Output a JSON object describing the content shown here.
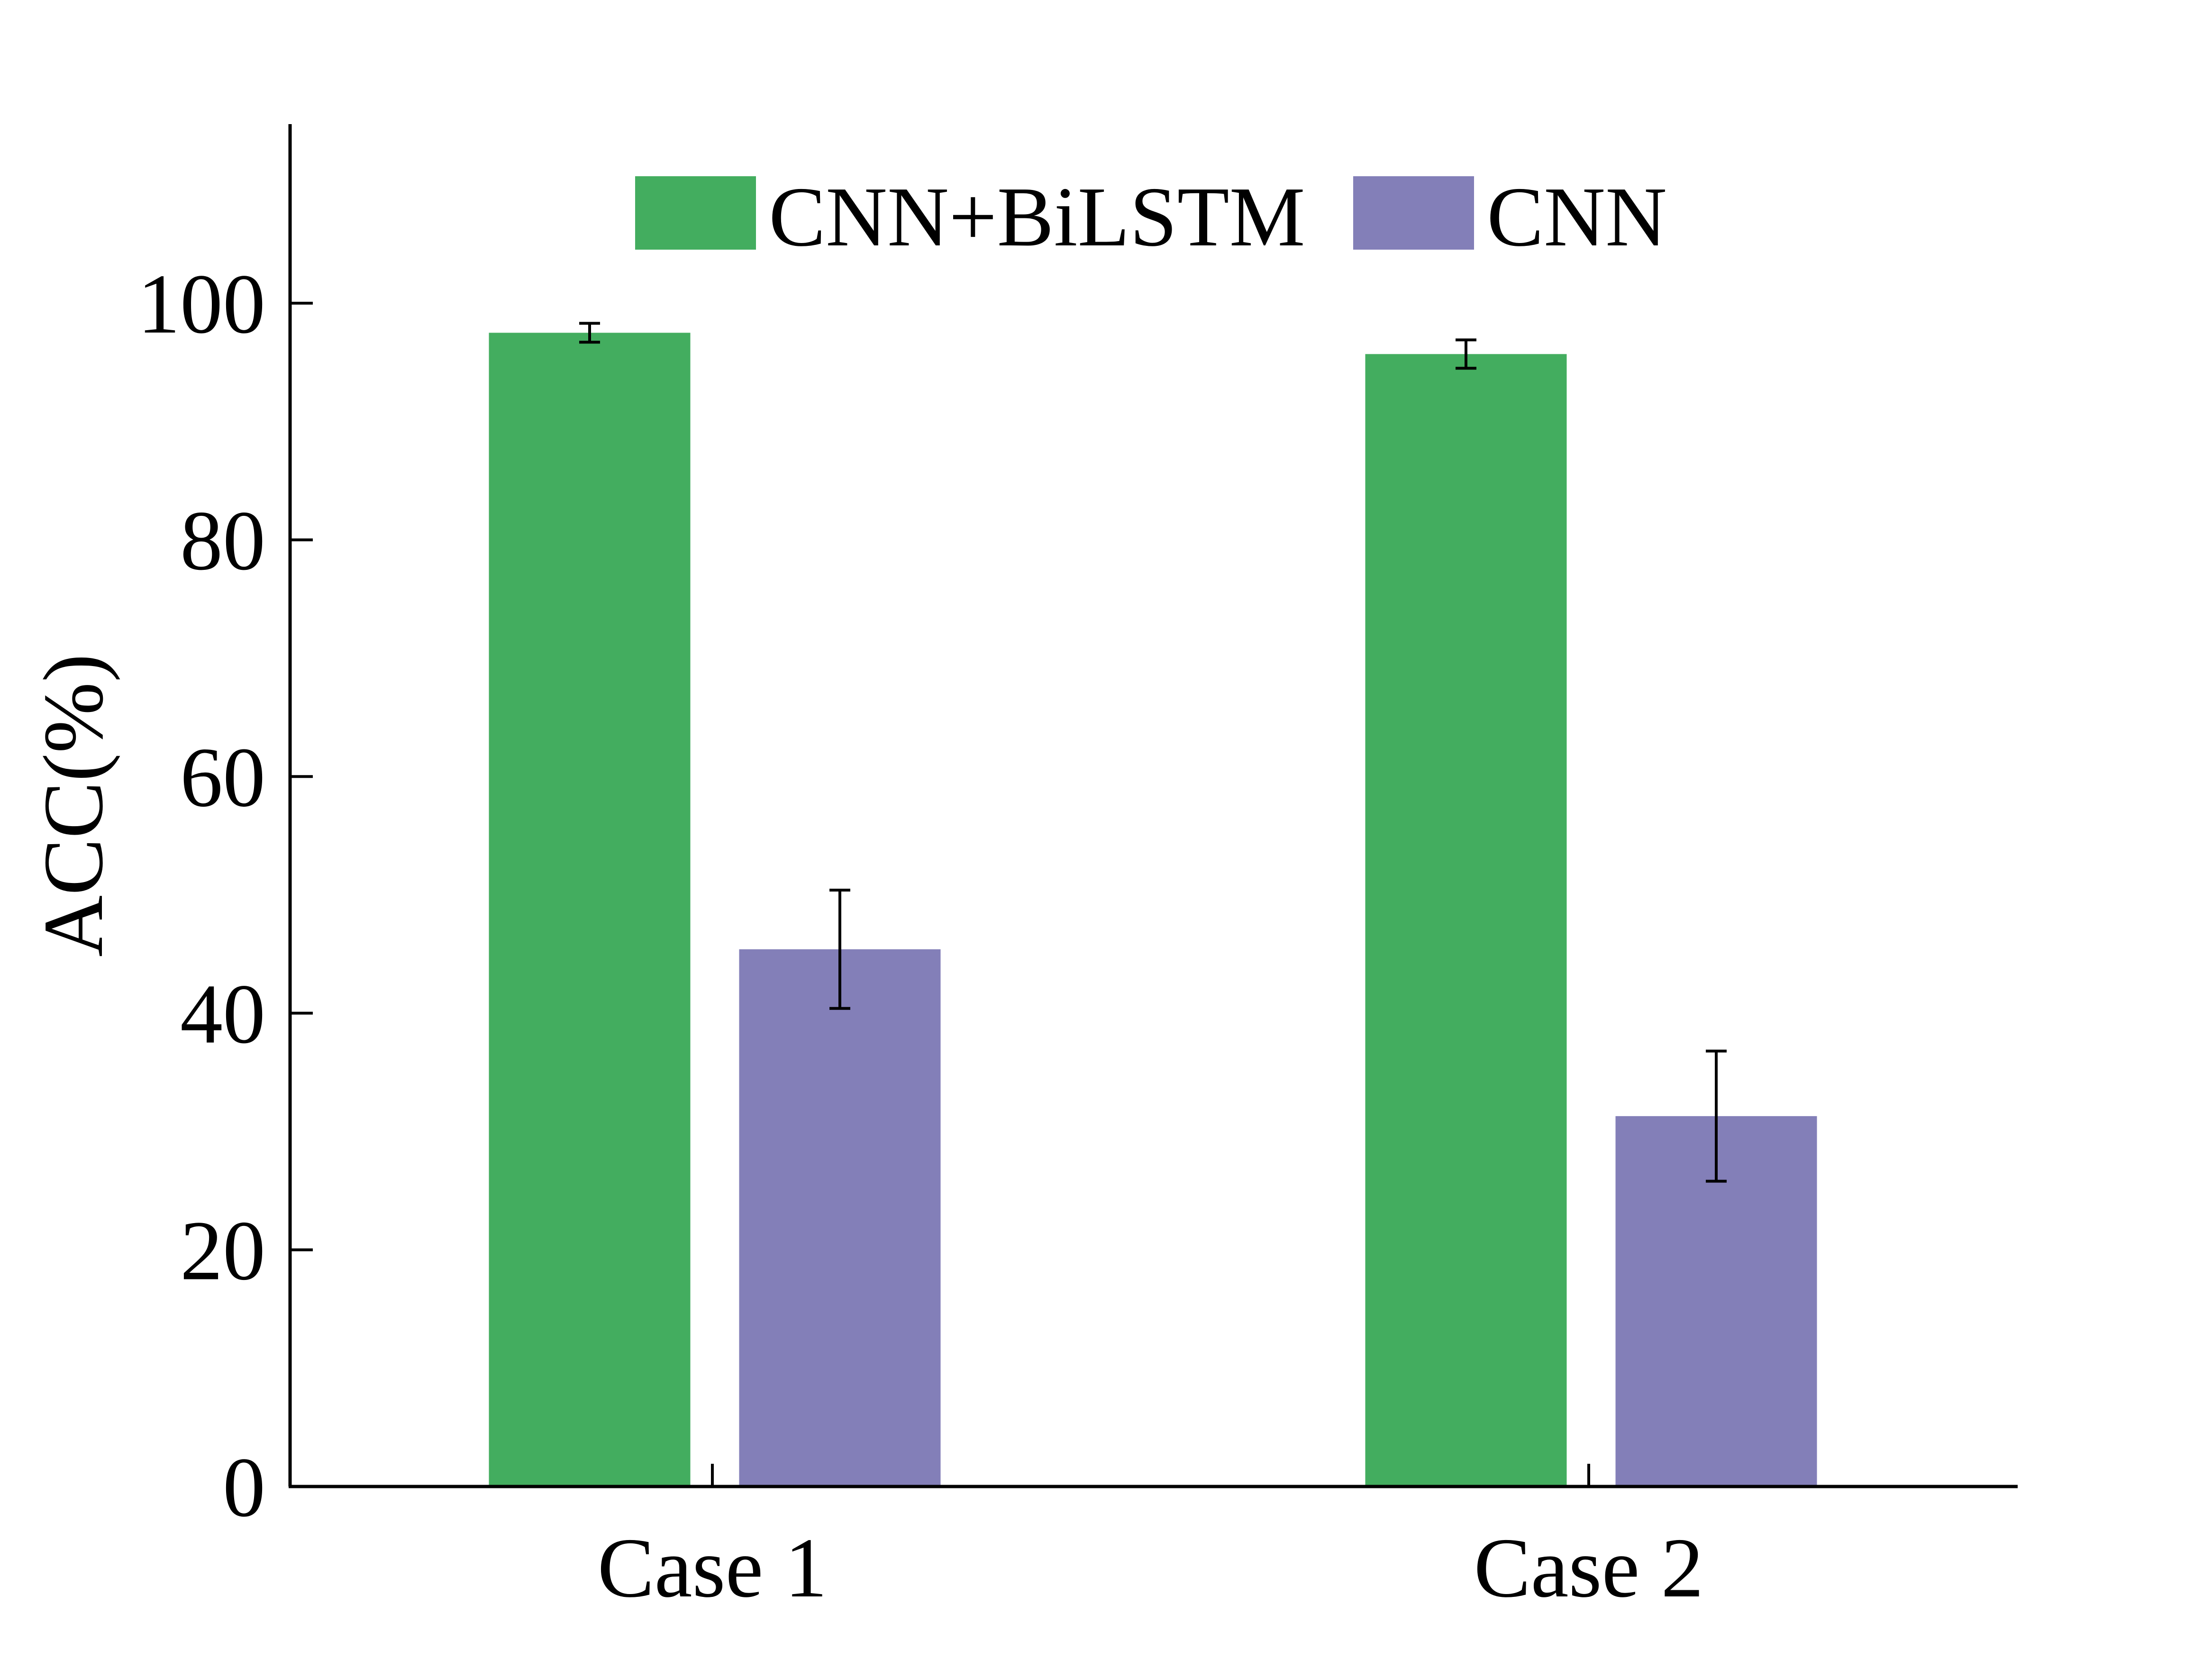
{
  "chart_data": {
    "type": "bar",
    "title": "",
    "xlabel": "",
    "ylabel": "ACC(%)",
    "ylim": [
      0,
      115
    ],
    "yticks": [
      0,
      20,
      40,
      60,
      80,
      100
    ],
    "categories": [
      "Case 1",
      "Case 2"
    ],
    "series": [
      {
        "name": "CNN+BiLSTM",
        "color": "#43ad5f",
        "values": [
          97.5,
          95.7
        ],
        "errors": [
          0.8,
          1.2
        ]
      },
      {
        "name": "CNN",
        "color": "#837fb8",
        "values": [
          45.4,
          31.3
        ],
        "errors": [
          5.0,
          5.5
        ]
      }
    ],
    "legend": "top-center",
    "grid": false
  }
}
